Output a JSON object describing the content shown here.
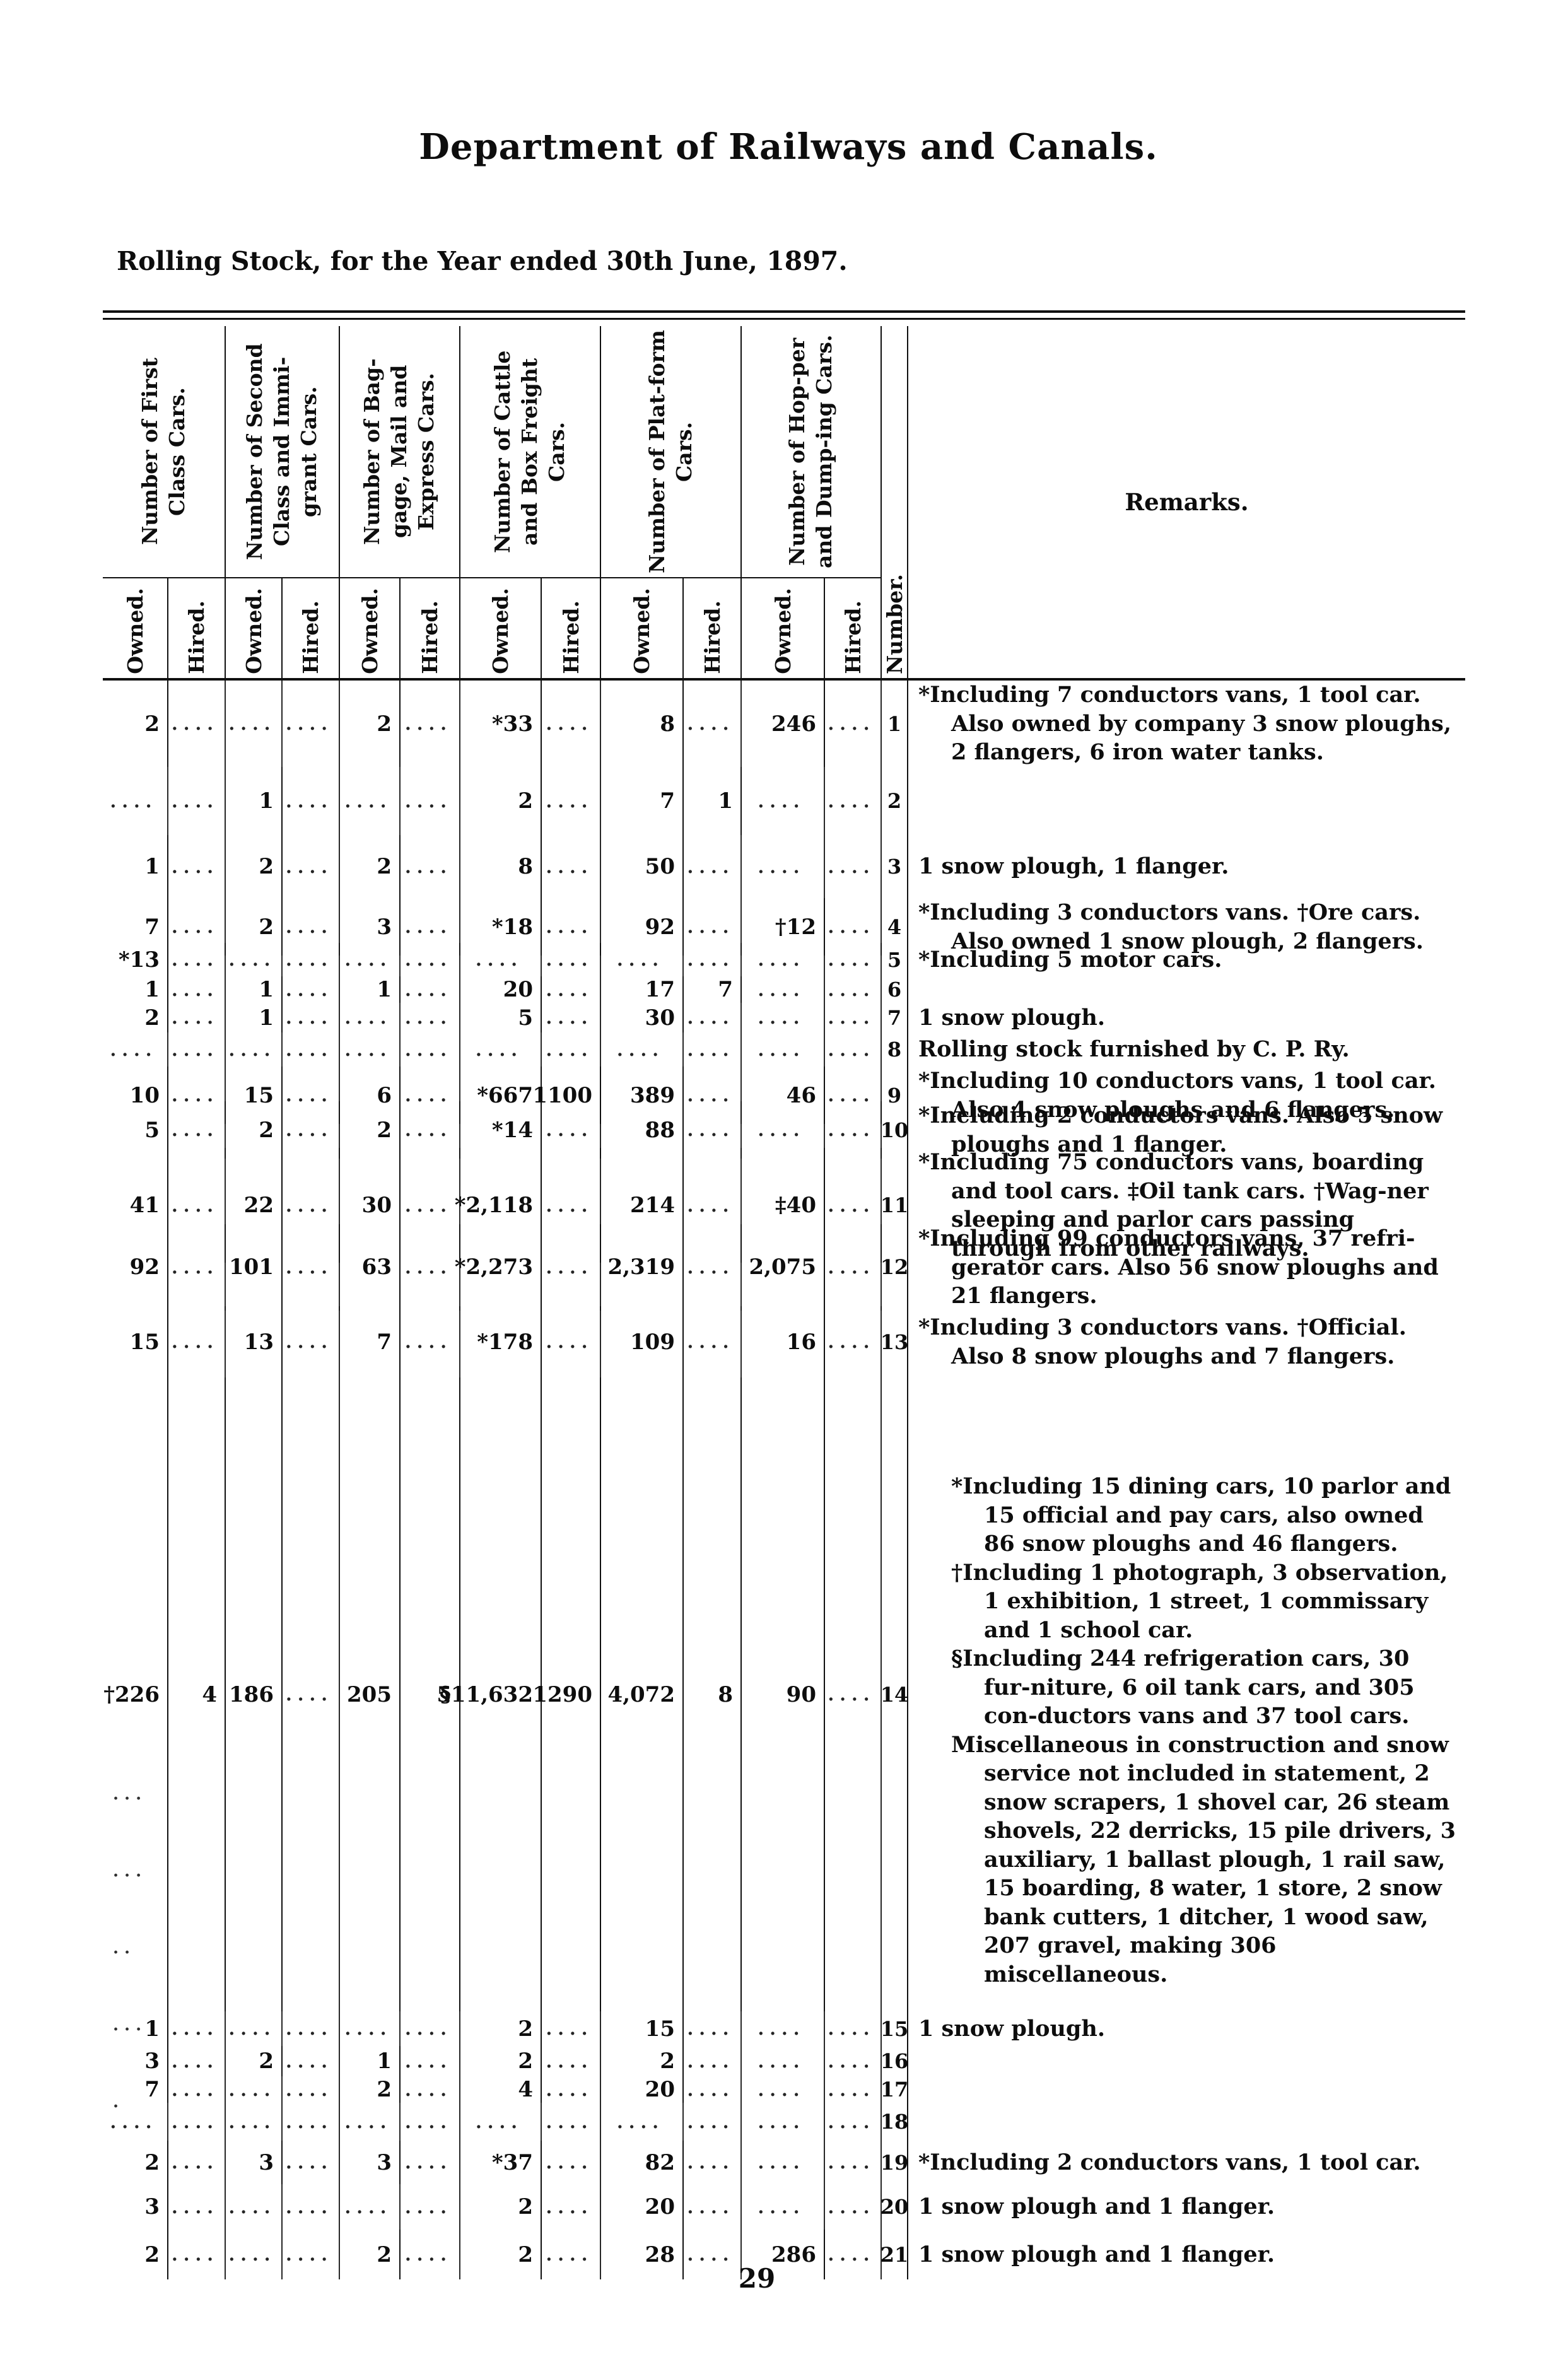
{
  "page": {
    "title": "Department of Railways and Canals.",
    "subtitle": "Rolling Stock, for the Year ended 30th June, 1897.",
    "page_number": "29"
  },
  "table": {
    "groups": [
      {
        "label": "Number of First Class Cars."
      },
      {
        "label": "Number of Second Class and Immi-grant Cars."
      },
      {
        "label": "Number of Bag-gage, Mail and Express Cars."
      },
      {
        "label": "Number of Cattle and Box Freight Cars."
      },
      {
        "label": "Number of Plat-form Cars."
      },
      {
        "label": "Number of Hop-per and Dump-ing Cars."
      }
    ],
    "sub_headers": [
      "Owned.",
      "Hired."
    ],
    "number_header": "Number.",
    "remarks_header": "Remarks.",
    "rows": [
      {
        "cells": [
          "2",
          "....",
          "....",
          "....",
          "2",
          "....",
          "*33",
          "....",
          "8",
          "....",
          "246",
          "...."
        ],
        "number": "1",
        "remarks": "*Including 7 conductors vans, 1 tool car. Also owned by company 3 snow ploughs, 2 flangers, 6 iron water tanks."
      },
      {
        "cells": [
          "....",
          "....",
          "1",
          "....",
          "....",
          "....",
          "2",
          "....",
          "7",
          "1",
          "....",
          "...."
        ],
        "number": "2",
        "remarks": ""
      },
      {
        "cells": [
          "1",
          "....",
          "2",
          "....",
          "2",
          "....",
          "8",
          "....",
          "50",
          "....",
          "....",
          "...."
        ],
        "number": "3",
        "remarks": "1 snow plough, 1 flanger."
      },
      {
        "cells": [
          "7",
          "....",
          "2",
          "....",
          "3",
          "....",
          "*18",
          "....",
          "92",
          "....",
          "†12",
          "...."
        ],
        "number": "4",
        "remarks": "*Including 3 conductors vans. †Ore cars. Also owned 1 snow plough, 2 flangers."
      },
      {
        "cells": [
          "*13",
          "....",
          "....",
          "....",
          "....",
          "....",
          "....",
          "....",
          "....",
          "....",
          "....",
          "...."
        ],
        "number": "5",
        "remarks": "*Including 5 motor cars."
      },
      {
        "cells": [
          "1",
          "....",
          "1",
          "....",
          "1",
          "....",
          "20",
          "....",
          "17",
          "7",
          "....",
          "...."
        ],
        "number": "6",
        "remarks": ""
      },
      {
        "cells": [
          "2",
          "....",
          "1",
          "....",
          "....",
          "....",
          "5",
          "....",
          "30",
          "....",
          "....",
          "...."
        ],
        "number": "7",
        "remarks": "1 snow plough."
      },
      {
        "cells": [
          "....",
          "....",
          "....",
          "....",
          "....",
          "....",
          "....",
          "....",
          "....",
          "....",
          "....",
          "...."
        ],
        "number": "8",
        "remarks": "Rolling stock furnished by C. P. Ry."
      },
      {
        "cells": [
          "10",
          "....",
          "15",
          "....",
          "6",
          "....",
          "*667",
          "1100",
          "389",
          "....",
          "46",
          "...."
        ],
        "number": "9",
        "remarks": "*Including 10 conductors vans, 1 tool car. Also 4 snow ploughs and 6 flangers."
      },
      {
        "cells": [
          "5",
          "....",
          "2",
          "....",
          "2",
          "....",
          "*14",
          "....",
          "88",
          "....",
          "....",
          "...."
        ],
        "number": "10",
        "remarks": "*Including 2 conductors vans.  Also 5 snow ploughs and 1 flanger."
      },
      {
        "cells": [
          "41",
          "....",
          "22",
          "....",
          "30",
          "....",
          "*2,118",
          "....",
          "214",
          "....",
          "‡40",
          "...."
        ],
        "number": "11",
        "remarks": "*Including 75 conductors vans, boarding and tool cars. ‡Oil tank cars. †Wag-ner sleeping and parlor cars passing through from other railways."
      },
      {
        "cells": [
          "92",
          "....",
          "101",
          "....",
          "63",
          "....",
          "*2,273",
          "....",
          "2,319",
          "....",
          "2,075",
          "...."
        ],
        "number": "12",
        "remarks": "*Including 99 conductors vans, 37 refri-gerator cars.  Also 56 snow ploughs and 21 flangers."
      },
      {
        "cells": [
          "15",
          "....",
          "13",
          "....",
          "7",
          "....",
          "*178",
          "....",
          "109",
          "....",
          "16",
          "...."
        ],
        "number": "13",
        "remarks": "*Including 3 conductors vans. †Official. Also 8 snow ploughs and 7 flangers."
      },
      {
        "cells": [
          "†226",
          "4",
          "186",
          "....",
          "205",
          "5",
          "§11,632",
          "1290",
          "4,072",
          "8",
          "90",
          "...."
        ],
        "number": "14",
        "remarks": [
          "*Including 15 dining cars, 10 parlor and 15 official and pay cars, also owned 86 snow ploughs and 46 flangers.",
          "†Including 1 photograph, 3 observation, 1 exhibition, 1 street, 1 commissary and 1 school car.",
          "§Including 244 refrigeration cars, 30 fur-niture, 6 oil tank cars, and 305 con-ductors vans and 37 tool cars.",
          "Miscellaneous in construction and snow service not included in statement, 2 snow scrapers, 1 shovel car, 26 steam shovels, 22 derricks, 15 pile drivers, 3 auxiliary, 1 ballast plough, 1 rail saw, 15 boarding, 8 water, 1 store, 2 snow bank cutters, 1 ditcher, 1 wood saw, 207 gravel, making 306 miscellaneous."
        ],
        "ditto_marks": [
          "...",
          "...",
          "..",
          "...",
          "."
        ]
      },
      {
        "cells": [
          "1",
          "....",
          "....",
          "....",
          "....",
          "....",
          "2",
          "....",
          "15",
          "....",
          "....",
          "...."
        ],
        "number": "15",
        "remarks": "1 snow plough."
      },
      {
        "cells": [
          "3",
          "....",
          "2",
          "....",
          "1",
          "....",
          "2",
          "....",
          "2",
          "....",
          "....",
          "...."
        ],
        "number": "16",
        "remarks": ""
      },
      {
        "cells": [
          "7",
          "....",
          "....",
          "....",
          "2",
          "....",
          "4",
          "....",
          "20",
          "....",
          "....",
          "...."
        ],
        "number": "17",
        "remarks": ""
      },
      {
        "cells": [
          "....",
          "....",
          "....",
          "....",
          "....",
          "....",
          "....",
          "....",
          "....",
          "....",
          "....",
          "...."
        ],
        "number": "18",
        "remarks": ""
      },
      {
        "cells": [
          "2",
          "....",
          "3",
          "....",
          "3",
          "....",
          "*37",
          "....",
          "82",
          "....",
          "....",
          "...."
        ],
        "number": "19",
        "remarks": "*Including 2 conductors vans, 1 tool car."
      },
      {
        "cells": [
          "3",
          "....",
          "....",
          "....",
          "....",
          "....",
          "2",
          "....",
          "20",
          "....",
          "....",
          "...."
        ],
        "number": "20",
        "remarks": "1 snow plough and 1 flanger."
      },
      {
        "cells": [
          "2",
          "....",
          "....",
          "....",
          "2",
          "....",
          "2",
          "....",
          "28",
          "....",
          "286",
          "...."
        ],
        "number": "21",
        "remarks": "1 snow plough and 1 flanger."
      }
    ]
  }
}
